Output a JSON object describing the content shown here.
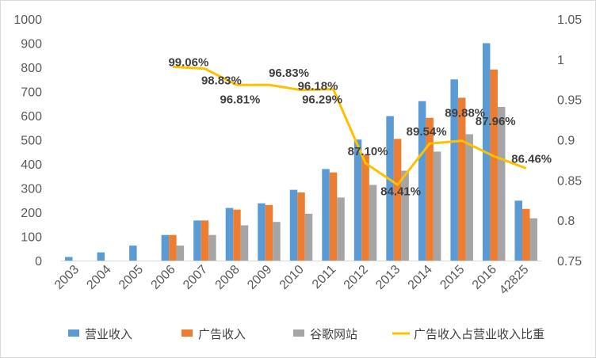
{
  "chart_data": {
    "type": "bar",
    "categories": [
      "2003",
      "2004",
      "2005",
      "2006",
      "2007",
      "2008",
      "2009",
      "2010",
      "2011",
      "2012",
      "2013",
      "2014",
      "2015",
      "2016",
      "42825"
    ],
    "series": [
      {
        "name": "营业收入",
        "kind": "bar",
        "axis": "left",
        "color": "#5b9bd5",
        "values": [
          15,
          34,
          62,
          106,
          166,
          218,
          237,
          293,
          379,
          501,
          598,
          660,
          750,
          900,
          248
        ]
      },
      {
        "name": "广告收入",
        "kind": "bar",
        "axis": "left",
        "color": "#ed7d31",
        "values": [
          null,
          null,
          null,
          106,
          166,
          211,
          230,
          282,
          365,
          437,
          504,
          591,
          674,
          791,
          214
        ]
      },
      {
        "name": "谷歌网站",
        "kind": "bar",
        "axis": "left",
        "color": "#a5a5a5",
        "values": [
          null,
          null,
          null,
          62,
          106,
          146,
          160,
          194,
          261,
          313,
          372,
          451,
          523,
          636,
          175
        ]
      },
      {
        "name": "广告收入占营业收入比重",
        "kind": "line",
        "axis": "right",
        "color": "#ffc000",
        "values": [
          null,
          null,
          null,
          0.9906,
          0.9883,
          0.9681,
          0.9683,
          0.9618,
          0.9629,
          0.871,
          0.8441,
          0.8954,
          0.8988,
          0.8796,
          0.8646
        ],
        "labels": [
          null,
          null,
          null,
          "99.06%",
          "98.83%",
          "96.81%",
          "96.83%",
          "96.18%",
          "96.29%",
          "87.10%",
          "84.41%",
          "89.54%",
          "89.88%",
          "87.96%",
          "86.46%"
        ]
      }
    ],
    "left_axis": {
      "min": 0,
      "max": 1000,
      "step": 100,
      "ticks": [
        "0",
        "100",
        "200",
        "300",
        "400",
        "500",
        "600",
        "700",
        "800",
        "900",
        "1000"
      ]
    },
    "right_axis": {
      "min": 0.75,
      "max": 1.05,
      "step": 0.05,
      "ticks": [
        "0.75",
        "0.8",
        "0.85",
        "0.9",
        "0.95",
        "1",
        "1.05"
      ]
    },
    "legend": {
      "position": "bottom",
      "items": [
        "营业收入",
        "广告收入",
        "谷歌网站",
        "广告收入占营业收入比重"
      ]
    },
    "grid": false,
    "title": "",
    "xlabel": "",
    "ylabel": ""
  }
}
